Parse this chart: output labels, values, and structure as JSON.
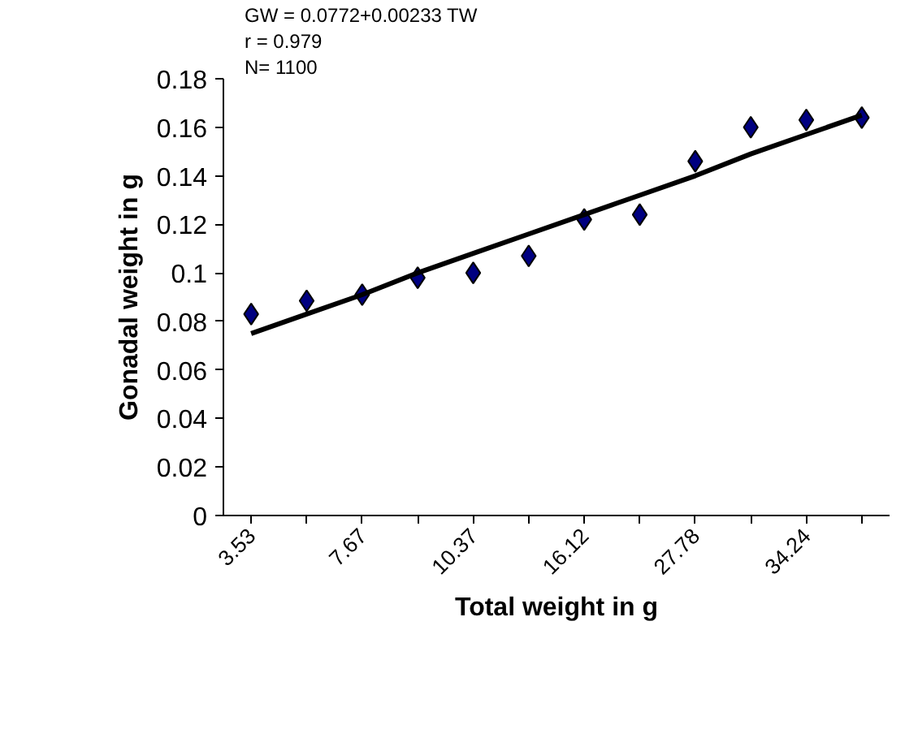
{
  "chart_data": {
    "type": "scatter",
    "xlabel": "Total weight in g",
    "ylabel": "Gonadal weight in g",
    "categories": [
      "3.53",
      null,
      "7.67",
      null,
      "10.37",
      null,
      "16.12",
      null,
      "27.78",
      null,
      "34.24",
      null
    ],
    "series": [
      {
        "color": "#000080",
        "marker": "diamond",
        "values": [
          0.083,
          0.0885,
          0.091,
          0.098,
          0.1,
          0.107,
          0.122,
          0.124,
          0.146,
          0.16,
          0.163,
          0.164
        ]
      },
      {
        "type": "line",
        "color": "#000000",
        "marker": "none",
        "values": [
          0.075,
          0.083,
          0.091,
          0.1,
          0.108,
          0.116,
          0.124,
          0.132,
          0.14,
          0.149,
          0.157,
          0.165
        ]
      }
    ],
    "ylim": [
      0,
      0.18
    ],
    "yticks": [
      0,
      0.02,
      0.04,
      0.06,
      0.08,
      0.1,
      0.12,
      0.14,
      0.16,
      0.18
    ],
    "grid": false,
    "annotations": [
      "GW = 0.0772+0.00233 TW",
      "r = 0.979",
      "N= 1100"
    ]
  }
}
